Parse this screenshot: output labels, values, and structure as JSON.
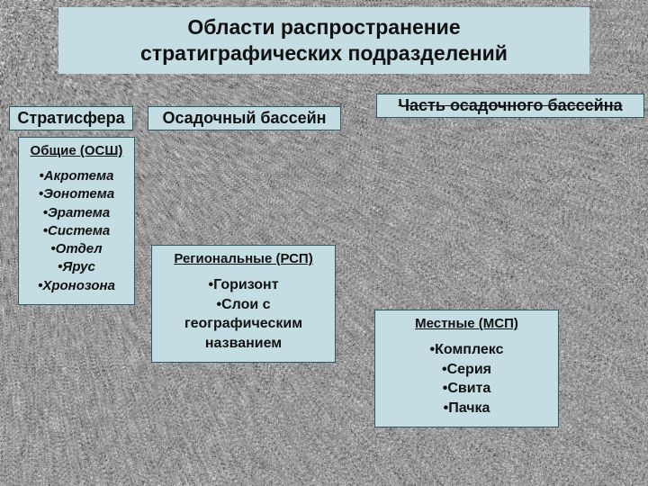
{
  "colors": {
    "box_bg": "#c4dde2",
    "box_border": "#2e5a63",
    "text": "#111111",
    "stage_bg": "#8a8a8a"
  },
  "title": {
    "line1": "Области распространение",
    "line2": "стратиграфических подразделений"
  },
  "categories": {
    "stratisfera": "Стратисфера",
    "basin": "Осадочный бассейн",
    "part_basin": "Часть осадочного бассейна"
  },
  "osw": {
    "title": "Общие (ОСШ)",
    "items": [
      "Акротема",
      "Эонотема",
      "Эратема",
      "Система",
      "Отдел",
      "Ярус",
      "Хронозона"
    ]
  },
  "rsp": {
    "title": "Региональные (РСП)",
    "items": [
      "Горизонт",
      "Слои с географическим названием"
    ]
  },
  "msp": {
    "title": "Местные (МСП)",
    "items": [
      "Комплекс",
      "Серия",
      "Свита",
      "Пачка"
    ]
  }
}
